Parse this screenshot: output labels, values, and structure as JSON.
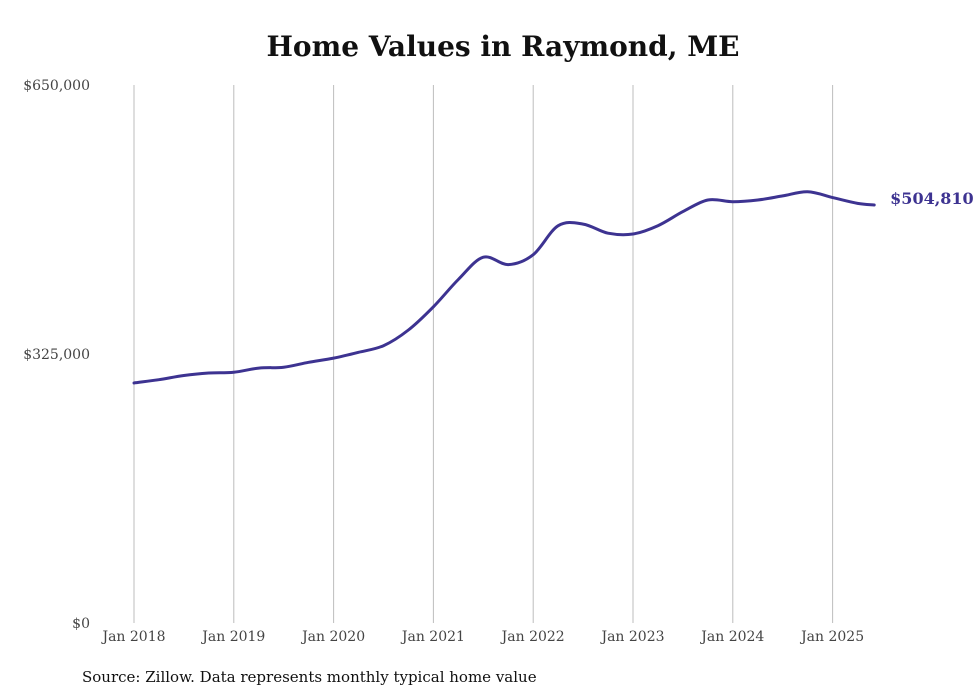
{
  "chart_data": {
    "type": "line",
    "title": "Home Values in Raymond, ME",
    "source": "Source: Zillow. Data represents monthly typical home value",
    "y_ticks": [
      "$0",
      "$325,000",
      "$650,000"
    ],
    "y_tick_values": [
      0,
      325000,
      650000
    ],
    "ylim": [
      0,
      650000
    ],
    "x_ticks": [
      "Jan 2018",
      "Jan 2019",
      "Jan 2020",
      "Jan 2021",
      "Jan 2022",
      "Jan 2023",
      "Jan 2024",
      "Jan 2025"
    ],
    "x_tick_values": [
      "2018-01",
      "2019-01",
      "2020-01",
      "2021-01",
      "2022-01",
      "2023-01",
      "2024-01",
      "2025-01"
    ],
    "grid": "vertical",
    "line_color": "#3d3391",
    "end_label": "$504,810",
    "series": [
      {
        "name": "",
        "x": [
          "2018-01",
          "2018-04",
          "2018-07",
          "2018-10",
          "2019-01",
          "2019-04",
          "2019-07",
          "2019-10",
          "2020-01",
          "2020-04",
          "2020-07",
          "2020-10",
          "2021-01",
          "2021-04",
          "2021-07",
          "2021-10",
          "2022-01",
          "2022-04",
          "2022-07",
          "2022-10",
          "2023-01",
          "2023-04",
          "2023-07",
          "2023-10",
          "2024-01",
          "2024-04",
          "2024-07",
          "2024-10",
          "2025-01",
          "2025-04",
          "2025-06"
        ],
        "values": [
          290000,
          294000,
          299000,
          302000,
          303000,
          308000,
          309000,
          315000,
          320000,
          327000,
          335000,
          354000,
          382000,
          415000,
          442000,
          433000,
          445000,
          480000,
          482000,
          471000,
          470000,
          480000,
          497000,
          511000,
          509000,
          511000,
          516000,
          521000,
          514000,
          507000,
          505000
        ]
      }
    ]
  }
}
